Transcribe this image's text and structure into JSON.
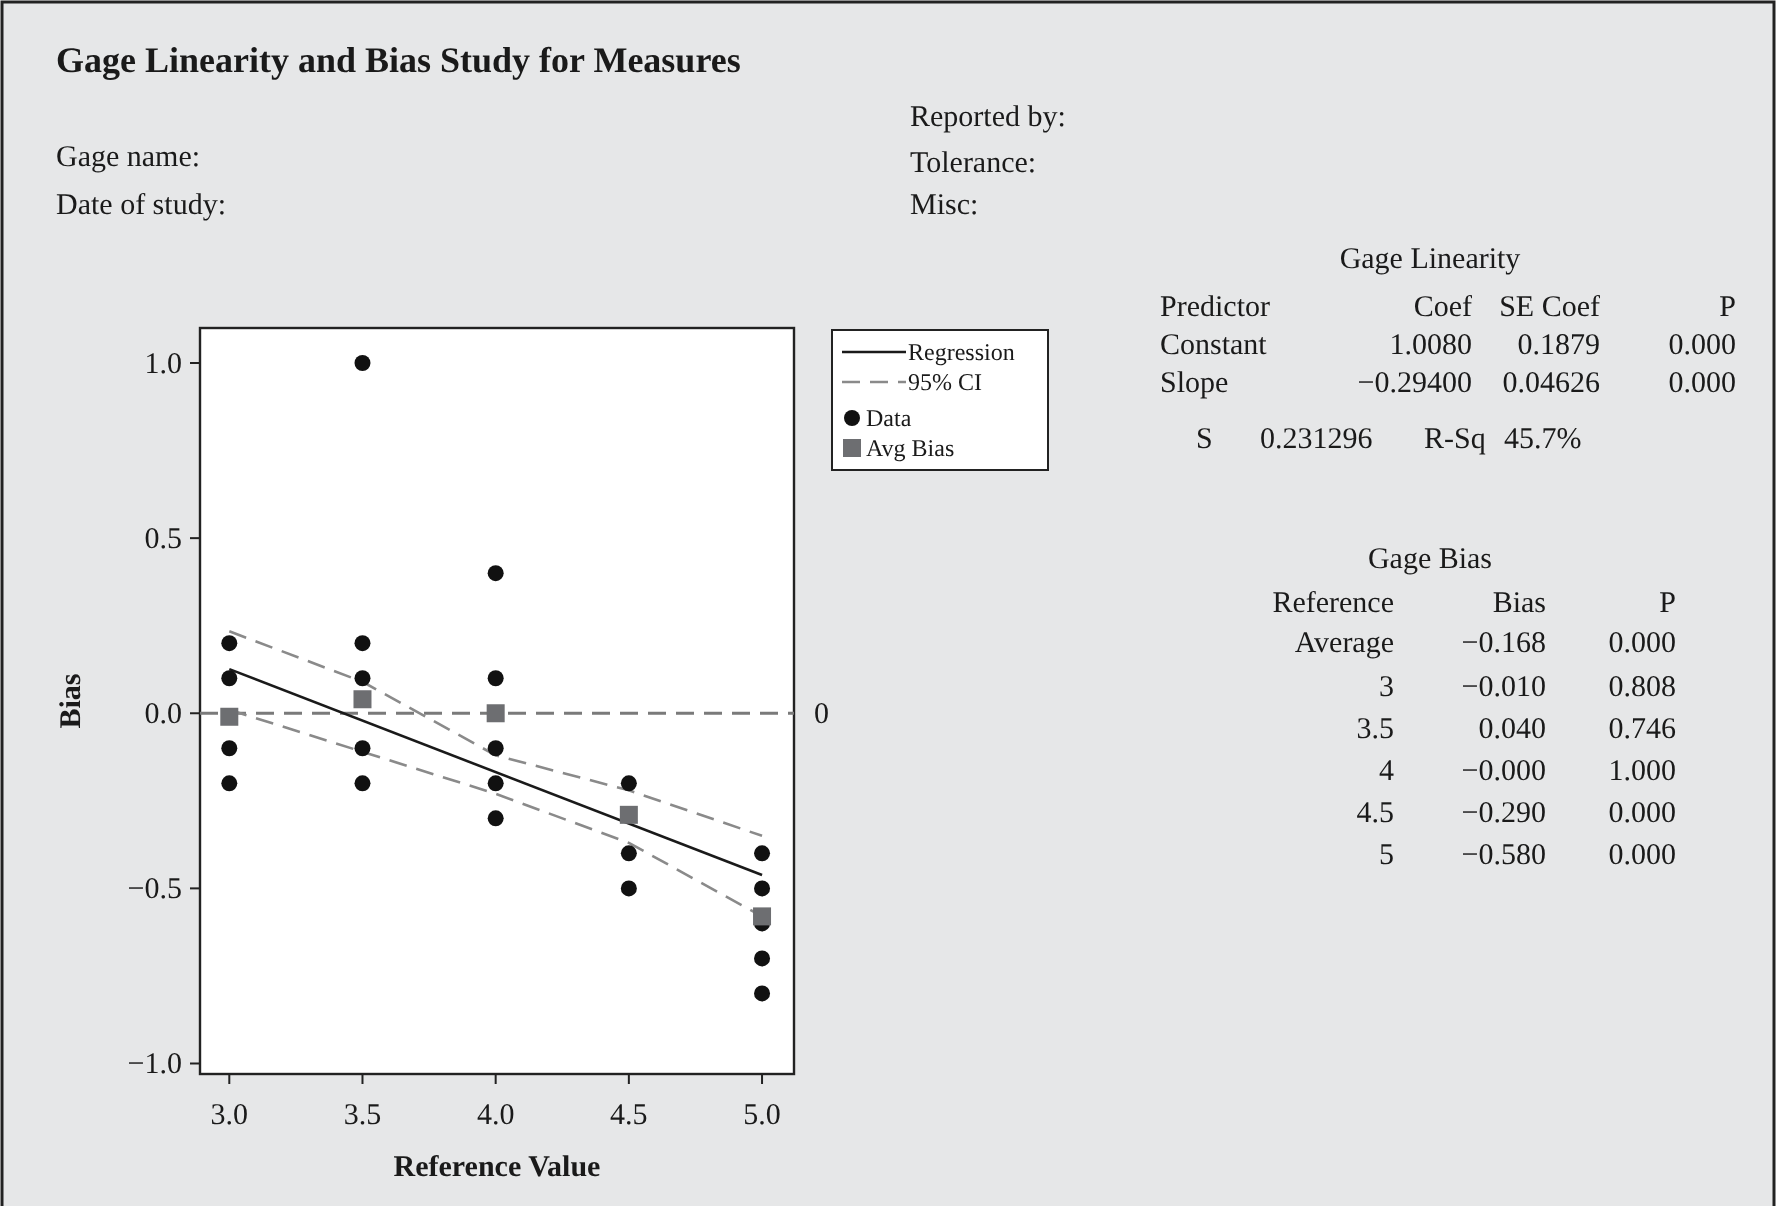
{
  "chart_data": {
    "type": "scatter",
    "title": "Gage Linearity and Bias Study for Measures",
    "xlabel": "Reference Value",
    "ylabel": "Bias",
    "xlim": [
      2.89,
      5.12
    ],
    "xticks": [
      {
        "value": 3,
        "label": "3.0"
      },
      3.5,
      {
        "value": 4,
        "label": "4.0"
      },
      4.5,
      {
        "value": 5,
        "label": "5.0"
      }
    ],
    "ylim": [
      -1.03,
      1.1
    ],
    "yticks": [
      {
        "value": -1,
        "label": "−1.0"
      },
      {
        "value": -0.5,
        "label": "−0.5"
      },
      {
        "value": 0,
        "label": "0.0"
      },
      0.5,
      {
        "value": 1,
        "label": "1.0"
      }
    ],
    "grid": false,
    "legend": "top right",
    "ref_lines": [
      {
        "axis": "y",
        "value": 0,
        "label": "0",
        "color": "#7a7a7a",
        "line_style": "dashed"
      }
    ],
    "series": [
      {
        "name": "Regression",
        "type": "line",
        "color": "#1a1a1a",
        "line_style": "solid",
        "marker": "none",
        "x": [
          3,
          5
        ],
        "values": [
          0.126,
          -0.462
        ]
      },
      {
        "name": "95% CI",
        "type": "line",
        "color": "#8a8a8a",
        "line_style": "dashed",
        "marker": "none",
        "x": [
          3,
          3.5,
          4,
          4.5,
          5
        ],
        "values": [
          0.234,
          0.09,
          -0.12,
          -0.22,
          -0.35
        ]
      },
      {
        "type": "line",
        "color": "#8a8a8a",
        "line_style": "dashed",
        "marker": "none",
        "x": [
          3,
          3.5,
          4,
          4.5,
          5
        ],
        "values": [
          0.01,
          -0.11,
          -0.23,
          -0.37,
          -0.58
        ]
      },
      {
        "name": "Data",
        "type": "scatter",
        "color": "#111111",
        "marker": "circle",
        "x": [
          3,
          3,
          3,
          3,
          3.5,
          3.5,
          3.5,
          3.5,
          3.5,
          4,
          4,
          4,
          4,
          4,
          4.5,
          4.5,
          4.5,
          5,
          5,
          5,
          5,
          5
        ],
        "values": [
          0.2,
          0.1,
          -0.1,
          -0.2,
          1.0,
          0.2,
          0.1,
          -0.1,
          -0.2,
          0.4,
          0.1,
          -0.1,
          -0.2,
          -0.3,
          -0.2,
          -0.4,
          -0.5,
          -0.4,
          -0.5,
          -0.6,
          -0.7,
          -0.8
        ]
      },
      {
        "name": "Avg Bias",
        "type": "scatter",
        "color": "#6d6e71",
        "marker": "square",
        "x": [
          3,
          3.5,
          4,
          4.5,
          5
        ],
        "values": [
          -0.01,
          0.04,
          0,
          -0.29,
          -0.58
        ]
      }
    ],
    "annotations": [
      "Gage name:",
      "Date of study:",
      "Reported by:",
      "Tolerance:",
      "Misc:",
      "Gage Linearity",
      "Predictor",
      "Coef",
      "SE Coef",
      "P",
      "Constant",
      "1.0080",
      "0.1879",
      "0.000",
      "Slope",
      "−0.29400",
      "0.04626",
      "0.000",
      "S",
      "0.231296",
      "R-Sq",
      "45.7%",
      "Gage Bias",
      "Reference",
      "Bias",
      "P",
      "Average",
      "−0.168",
      "0.000",
      "3",
      "−0.010",
      "0.808",
      "3.5",
      "0.040",
      "0.746",
      "4",
      "−0.000",
      "1.000",
      "4.5",
      "−0.290",
      "0.000",
      "5",
      "−0.580",
      "0.000"
    ]
  }
}
